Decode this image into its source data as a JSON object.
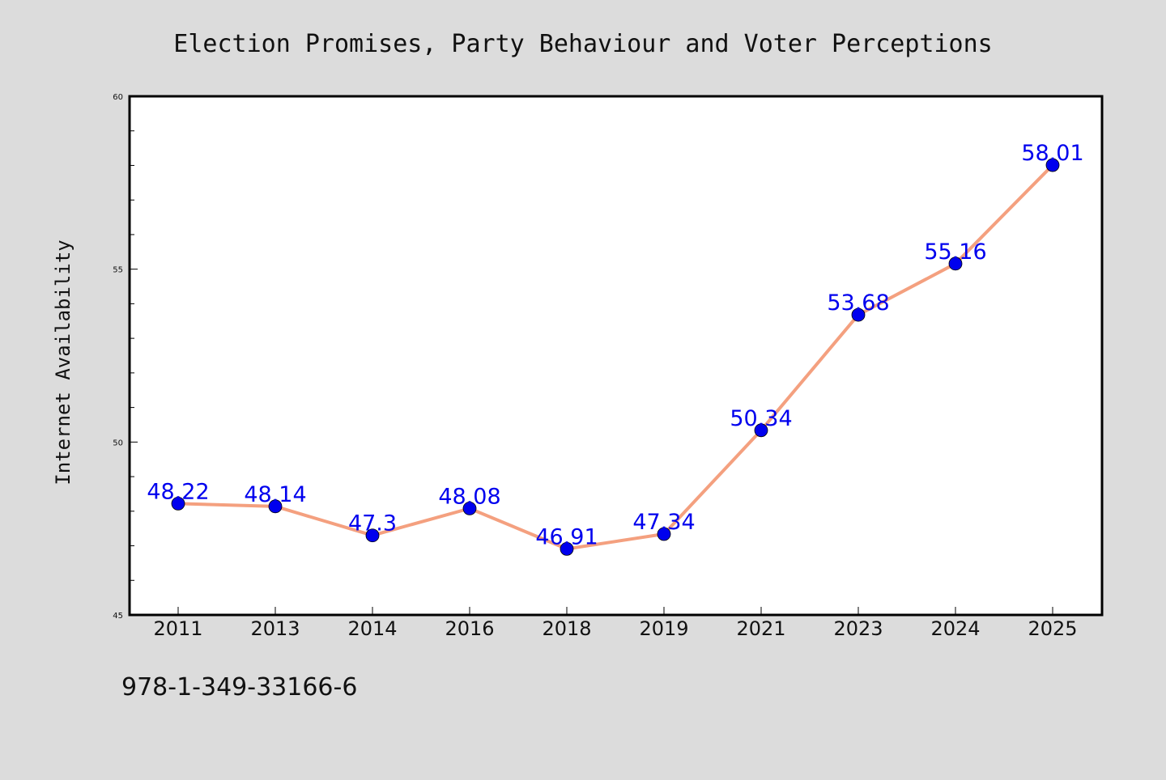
{
  "chart_data": {
    "type": "line",
    "title": "Election Promises, Party Behaviour and Voter Perceptions",
    "xlabel": "",
    "ylabel": "Internet Availability",
    "categories": [
      "2011",
      "2013",
      "2014",
      "2016",
      "2018",
      "2019",
      "2021",
      "2023",
      "2024",
      "2025"
    ],
    "series": [
      {
        "values": [
          48.22,
          48.14,
          47.3,
          48.08,
          46.91,
          47.34,
          50.34,
          53.68,
          55.16,
          58.01
        ],
        "labels": [
          "48.22",
          "48.14",
          "47.3",
          "48.08",
          "46.91",
          "47.34",
          "50.34",
          "53.68",
          "55.16",
          "58.01"
        ],
        "line_color": "#f4a07f",
        "marker_color": "#0000ee",
        "label_color": "#0000ee"
      }
    ],
    "ylim": [
      45,
      60
    ],
    "yticks": [
      "45",
      "50",
      "55",
      "60"
    ],
    "grid": false,
    "background": "#dcdcdc",
    "plot_background": "#ffffff"
  },
  "caption": "978-1-349-33166-6"
}
